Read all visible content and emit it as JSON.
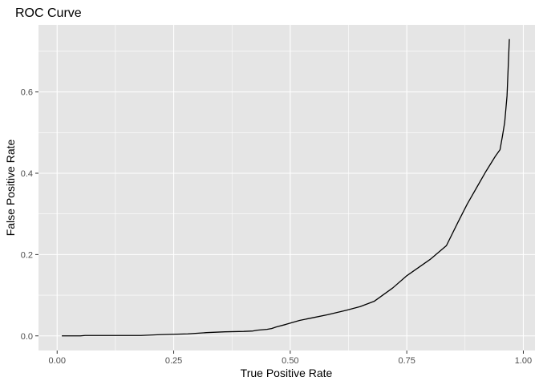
{
  "chart_data": {
    "type": "line",
    "title": "ROC Curve",
    "xlabel": "True Positive Rate",
    "ylabel": "False Positive Rate",
    "xlim": [
      -0.04,
      1.025
    ],
    "ylim": [
      -0.036,
      0.765
    ],
    "x_ticks": [
      0,
      0.25,
      0.5,
      0.75,
      1
    ],
    "x_tick_labels": [
      "0.00",
      "0.25",
      "0.50",
      "0.75",
      "1.00"
    ],
    "y_ticks": [
      0,
      0.2,
      0.4,
      0.6
    ],
    "y_tick_labels": [
      "0.0",
      "0.2",
      "0.4",
      "0.6"
    ],
    "grid": true,
    "colors": {
      "panel": "#e5e5e5",
      "grid": "#ffffff",
      "line": "#000000",
      "tick": "#333333"
    },
    "series": [
      {
        "x": [
          0.01,
          0.05,
          0.06,
          0.12,
          0.18,
          0.22,
          0.25,
          0.28,
          0.32,
          0.36,
          0.4,
          0.42,
          0.43,
          0.45,
          0.46,
          0.47,
          0.49,
          0.52,
          0.55,
          0.58,
          0.62,
          0.65,
          0.68,
          0.72,
          0.75,
          0.8,
          0.835,
          0.86,
          0.88,
          0.9,
          0.92,
          0.94,
          0.95,
          0.955,
          0.96,
          0.965,
          0.97
        ],
        "y": [
          0.0,
          0.0,
          0.001,
          0.001,
          0.001,
          0.003,
          0.004,
          0.005,
          0.008,
          0.01,
          0.011,
          0.012,
          0.014,
          0.016,
          0.018,
          0.022,
          0.028,
          0.038,
          0.045,
          0.052,
          0.063,
          0.072,
          0.085,
          0.118,
          0.148,
          0.188,
          0.222,
          0.28,
          0.325,
          0.365,
          0.405,
          0.442,
          0.458,
          0.49,
          0.525,
          0.59,
          0.73
        ]
      }
    ]
  }
}
